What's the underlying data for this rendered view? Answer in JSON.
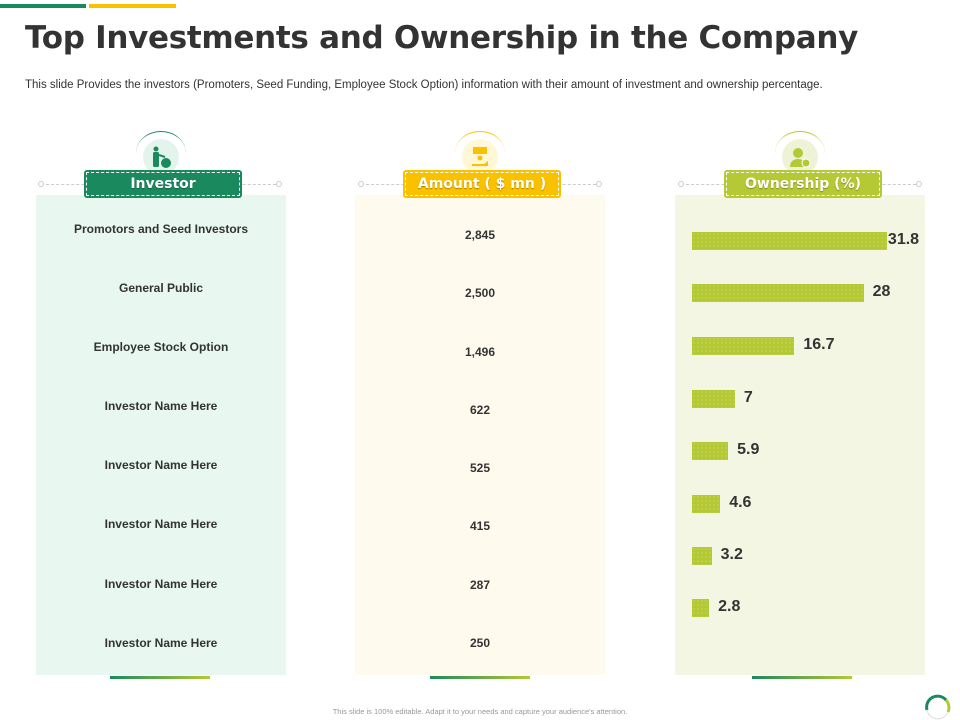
{
  "header": {
    "title": "Top Investments and Ownership in the Company",
    "subtitle": "This slide Provides the investors (Promoters, Seed Funding, Employee Stock Option) information with their amount of investment and ownership percentage."
  },
  "columns": {
    "investor": "Investor",
    "amount": "Amount ( $ mn )",
    "ownership": "Ownership (%)"
  },
  "rows": [
    {
      "investor": "Promotors and Seed Investors",
      "amount": "2,845",
      "ownership": 31.8
    },
    {
      "investor": "General Public",
      "amount": "2,500",
      "ownership": 28
    },
    {
      "investor": "Employee  Stock Option",
      "amount": "1,496",
      "ownership": 16.7
    },
    {
      "investor": "Investor Name Here",
      "amount": "622",
      "ownership": 7
    },
    {
      "investor": "Investor Name Here",
      "amount": "525",
      "ownership": 5.9
    },
    {
      "investor": "Investor Name Here",
      "amount": "415",
      "ownership": 4.6
    },
    {
      "investor": "Investor Name Here",
      "amount": "287",
      "ownership": 3.2
    },
    {
      "investor": "Investor Name Here",
      "amount": "250",
      "ownership": 2.8
    }
  ],
  "footer": "This slide is 100% editable.  Adapt it to your needs and capture your audience's  attention.",
  "colors": {
    "green": "#1a8a5e",
    "yellow": "#f9c100",
    "lime": "#b5c935"
  },
  "icons": [
    "investor-money-bag-icon",
    "cash-hand-icon",
    "user-dollar-icon"
  ]
}
